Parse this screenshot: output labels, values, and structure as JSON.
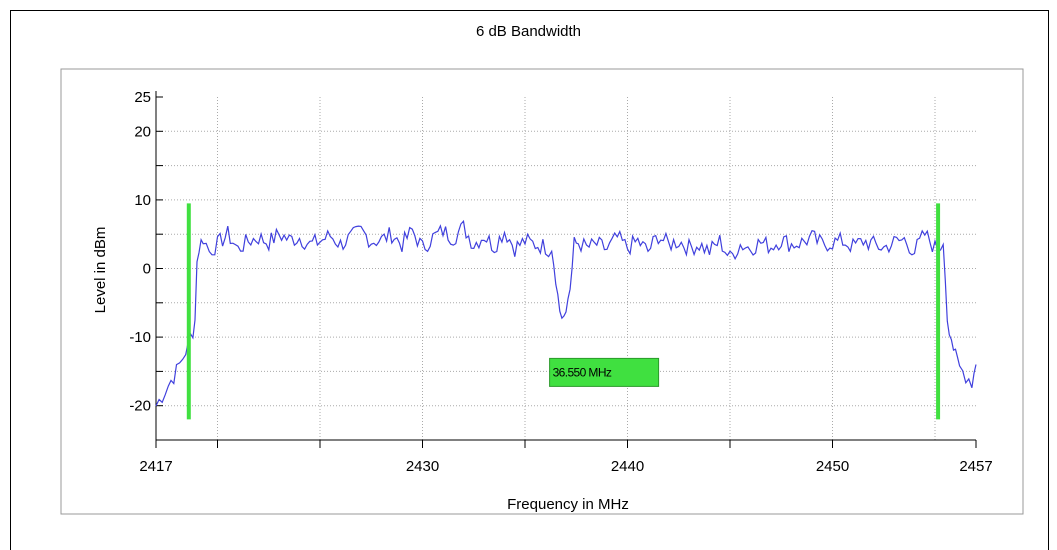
{
  "chart_data": {
    "type": "line",
    "title": "6 dB Bandwidth",
    "xlabel": "Frequency in MHz",
    "ylabel": "Level in dBm",
    "xlim": [
      2417,
      2457
    ],
    "ylim": [
      -25,
      25
    ],
    "x_tick_labels": [
      2417,
      2430,
      2440,
      2450,
      2457
    ],
    "x_minor_ticks": [
      2420,
      2425,
      2435,
      2445
    ],
    "y_tick_labels": [
      25,
      20,
      10,
      0,
      -10,
      -20
    ],
    "y_minor_ticks": [
      15,
      5,
      -5,
      -15
    ],
    "grid": true,
    "grid_x": [
      2420,
      2425,
      2430,
      2435,
      2440,
      2445,
      2450,
      2455
    ],
    "grid_y": [
      20,
      15,
      10,
      5,
      0,
      -5,
      -10,
      -15,
      -20
    ],
    "series": [
      {
        "color": "#4040dd",
        "x": [
          2417.0,
          2417.3,
          2417.6,
          2418.0,
          2418.3,
          2418.6,
          2418.8,
          2418.9,
          2419.0,
          2419.1,
          2419.3,
          2419.6,
          2420.0,
          2420.5,
          2421.0,
          2421.5,
          2422.0,
          2422.5,
          2423.0,
          2423.5,
          2424.0,
          2424.5,
          2425.0,
          2425.5,
          2426.0,
          2426.5,
          2427.0,
          2427.5,
          2428.0,
          2428.5,
          2429.0,
          2429.5,
          2430.0,
          2430.5,
          2431.0,
          2431.5,
          2432.0,
          2432.5,
          2433.0,
          2433.5,
          2434.0,
          2434.5,
          2435.0,
          2435.5,
          2436.0,
          2436.3,
          2436.5,
          2436.7,
          2436.8,
          2437.0,
          2437.2,
          2437.4,
          2437.6,
          2438.0,
          2438.5,
          2439.0,
          2439.5,
          2440.0,
          2440.5,
          2441.0,
          2441.5,
          2442.0,
          2442.5,
          2443.0,
          2443.5,
          2444.0,
          2444.5,
          2445.0,
          2445.5,
          2446.0,
          2446.5,
          2447.0,
          2447.5,
          2448.0,
          2448.5,
          2449.0,
          2449.5,
          2450.0,
          2450.5,
          2451.0,
          2451.5,
          2452.0,
          2452.5,
          2453.0,
          2453.5,
          2454.0,
          2454.5,
          2455.0,
          2455.4,
          2455.6,
          2455.8,
          2456.0,
          2456.2,
          2456.5,
          2456.8,
          2457.0
        ],
        "y": [
          -20,
          -18.5,
          -17,
          -15,
          -13,
          -11,
          -9,
          -7.5,
          1,
          3,
          4.5,
          2.5,
          3.5,
          5,
          2.8,
          4,
          4.5,
          3.8,
          5,
          4.2,
          4.5,
          3.5,
          4,
          4.8,
          3.5,
          4.5,
          5.5,
          4,
          4.2,
          5,
          3.5,
          5.5,
          3,
          4.5,
          5.5,
          4.5,
          6,
          3.5,
          4.8,
          3.2,
          5.5,
          3,
          4,
          3.5,
          3.2,
          2.5,
          -1.5,
          -5,
          -7.5,
          -6,
          -3,
          3.5,
          3.8,
          3,
          3.5,
          2.8,
          4.5,
          3,
          4,
          2.5,
          4.8,
          3.5,
          4,
          3,
          3.5,
          2.5,
          4,
          1.5,
          3.5,
          3,
          3.8,
          3.2,
          4.2,
          3.5,
          3.8,
          4.5,
          3.5,
          3.8,
          4,
          3.2,
          4,
          3.5,
          3,
          3.8,
          4.2,
          2.5,
          5,
          3,
          3.5,
          -7,
          -10,
          -13,
          -14.5,
          -15.5,
          -16.5,
          -14
        ]
      }
    ],
    "markers": [
      {
        "x": 2418.6,
        "label": "marker-left"
      },
      {
        "x": 2455.15,
        "label": "marker-right"
      }
    ],
    "marker_color": "#40e040",
    "annotation": {
      "text": "36.550 MHz",
      "x": 2436.2,
      "y": -15
    }
  }
}
